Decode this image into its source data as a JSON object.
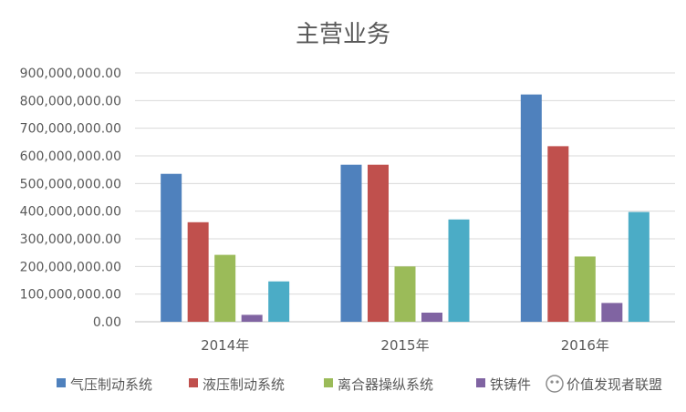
{
  "chart_data": {
    "type": "bar",
    "title": "主营业务",
    "xlabel": "",
    "ylabel": "",
    "categories": [
      "2014年",
      "2015年",
      "2016年"
    ],
    "ylim": [
      0,
      900000000
    ],
    "yticks": [
      0,
      100000000,
      200000000,
      300000000,
      400000000,
      500000000,
      600000000,
      700000000,
      800000000,
      900000000
    ],
    "ytick_labels": [
      "0.00",
      "100,000,000.00",
      "200,000,000.00",
      "300,000,000.00",
      "400,000,000.00",
      "500,000,000.00",
      "600,000,000.00",
      "700,000,000.00",
      "800,000,000.00",
      "900,000,000.00"
    ],
    "grid": true,
    "legend": "bottom",
    "series": [
      {
        "name": "气压制动系统",
        "color": "#4F81BD",
        "values": [
          535000000,
          568000000,
          822000000
        ]
      },
      {
        "name": "液压制动系统",
        "color": "#C0504D",
        "values": [
          360000000,
          568000000,
          635000000
        ]
      },
      {
        "name": "离合器操纵系统",
        "color": "#9BBB59",
        "values": [
          242000000,
          200000000,
          236000000
        ]
      },
      {
        "name": "铁铸件",
        "color": "#8064A2",
        "values": [
          25000000,
          33000000,
          68000000
        ]
      },
      {
        "name": "",
        "color": "#4BACC6",
        "values": [
          146000000,
          370000000,
          397000000
        ]
      }
    ]
  },
  "watermark": "价值发现者联盟"
}
